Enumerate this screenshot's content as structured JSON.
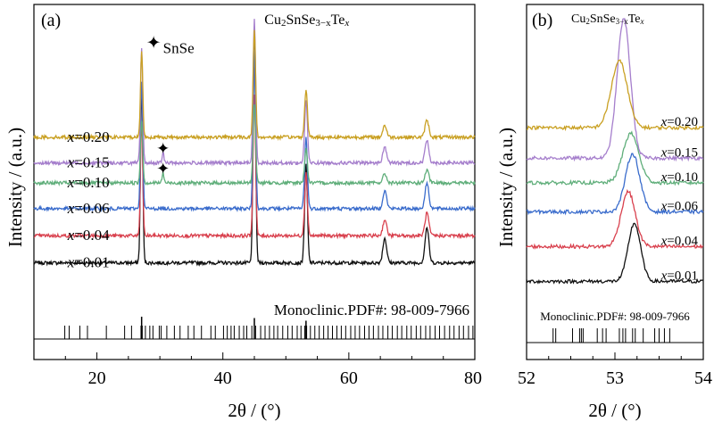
{
  "chart_data": [
    {
      "panel_label": "(a)",
      "type": "line",
      "title": "Cu2SnSe3−xTex",
      "title_parts": [
        {
          "t": "Cu",
          "s": "normal"
        },
        {
          "t": "2",
          "s": "sub"
        },
        {
          "t": "SnSe",
          "s": "normal"
        },
        {
          "t": "3−x",
          "s": "sub"
        },
        {
          "t": "Te",
          "s": "normal"
        },
        {
          "t": "x",
          "s": "sub-italic"
        }
      ],
      "xlabel": "2θ / (°)",
      "ylabel": "Intensity / (a.u.)",
      "xlim": [
        10,
        80
      ],
      "xticks": [
        20,
        40,
        60,
        80
      ],
      "ylim": [
        0,
        1
      ],
      "grid": false,
      "legend": {
        "marker": "✦",
        "label": "SnSe",
        "placement": "top-left"
      },
      "reference": {
        "label": "Monoclinic.PDF#: 98-009-7966",
        "positions": [
          14.9,
          15.6,
          17.3,
          18.5,
          21.5,
          24.4,
          25.5,
          27.0,
          27.2,
          27.7,
          28.4,
          28.9,
          29.9,
          30.2,
          31.1,
          32.3,
          33.2,
          34.5,
          35.4,
          36.6,
          38.1,
          38.8,
          40.1,
          40.7,
          41.3,
          41.8,
          42.6,
          43.3,
          43.8,
          44.6,
          45.2,
          46.0,
          46.7,
          47.4,
          48.1,
          48.7,
          49.5,
          50.3,
          51.0,
          51.8,
          52.4,
          53.0,
          53.3,
          53.9,
          54.6,
          55.3,
          56.0,
          56.7,
          57.4,
          58.1,
          58.8,
          59.5,
          60.3,
          61.0,
          61.7,
          62.5,
          63.2,
          63.9,
          64.7,
          65.4,
          66.2,
          66.9,
          67.7,
          68.4,
          69.2,
          69.9,
          70.7,
          71.4,
          72.2,
          72.9,
          73.7,
          74.4,
          75.2,
          76.0,
          76.7,
          77.5,
          78.2,
          79.0,
          79.7
        ],
        "strong": [
          27.1,
          45.0,
          53.2
        ],
        "strong_intensity": [
          1.0,
          0.85,
          0.55
        ]
      },
      "peaks": [
        {
          "pos": 27.1,
          "intensity": 1.0,
          "width": 0.18
        },
        {
          "pos": 45.0,
          "intensity": 1.25,
          "width": 0.2
        },
        {
          "pos": 53.2,
          "intensity": 0.55,
          "width": 0.22
        },
        {
          "pos": 65.7,
          "intensity": 0.14,
          "width": 0.3
        },
        {
          "pos": 72.4,
          "intensity": 0.2,
          "width": 0.3
        }
      ],
      "series": [
        {
          "name": "x=0.01",
          "color": "#111111",
          "baseline": 0.095,
          "scale": 0.62,
          "snse": false
        },
        {
          "name": "x=0.04",
          "color": "#d9414e",
          "baseline": 0.19,
          "scale": 0.4,
          "snse": false
        },
        {
          "name": "x=0.06",
          "color": "#3a6ccc",
          "baseline": 0.285,
          "scale": 0.45,
          "snse": false
        },
        {
          "name": "x=0.10",
          "color": "#5fae7a",
          "baseline": 0.375,
          "scale": 0.22,
          "snse": true
        },
        {
          "name": "x=0.15",
          "color": "#a57ecc",
          "baseline": 0.445,
          "scale": 0.4,
          "snse": true
        },
        {
          "name": "x=0.20",
          "color": "#c9a022",
          "baseline": 0.535,
          "scale": 0.3,
          "snse": false
        }
      ]
    },
    {
      "panel_label": "(b)",
      "type": "line",
      "title": "Cu2SnSe3−xTex",
      "title_parts": [
        {
          "t": "Cu",
          "s": "normal"
        },
        {
          "t": "2",
          "s": "sub"
        },
        {
          "t": "SnSe",
          "s": "normal"
        },
        {
          "t": "3−x",
          "s": "sub"
        },
        {
          "t": "Te",
          "s": "normal"
        },
        {
          "t": "x",
          "s": "sub-italic"
        }
      ],
      "xlabel": "2θ / (°)",
      "ylabel": "Intensity / (a.u.)",
      "xlim": [
        52,
        54
      ],
      "xticks": [
        52,
        53,
        54
      ],
      "ylim": [
        0,
        1
      ],
      "grid": false,
      "reference": {
        "label": "Monoclinic.PDF#: 98-009-7966",
        "positions": [
          52.3,
          52.33,
          52.52,
          52.6,
          52.62,
          52.64,
          52.8,
          52.86,
          52.9,
          53.05,
          53.09,
          53.12,
          53.2,
          53.23,
          53.32,
          53.45,
          53.5,
          53.56,
          53.62
        ]
      },
      "series": [
        {
          "name": "x=0.01",
          "color": "#111111",
          "baseline": 0.045,
          "center": 53.22,
          "height": 0.2,
          "width": 0.07
        },
        {
          "name": "x=0.04",
          "color": "#d9414e",
          "baseline": 0.165,
          "center": 53.15,
          "height": 0.19,
          "width": 0.08
        },
        {
          "name": "x=0.06",
          "color": "#3a6ccc",
          "baseline": 0.285,
          "center": 53.2,
          "height": 0.2,
          "width": 0.08
        },
        {
          "name": "x=0.10",
          "color": "#5fae7a",
          "baseline": 0.385,
          "center": 53.18,
          "height": 0.17,
          "width": 0.09
        },
        {
          "name": "x=0.15",
          "color": "#a57ecc",
          "baseline": 0.47,
          "center": 53.1,
          "height": 0.48,
          "width": 0.075
        },
        {
          "name": "x=0.20",
          "color": "#c9a022",
          "baseline": 0.575,
          "center": 53.05,
          "height": 0.23,
          "width": 0.09
        }
      ]
    }
  ]
}
